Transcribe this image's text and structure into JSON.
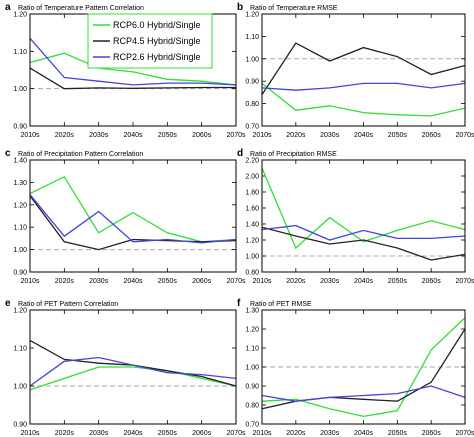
{
  "chart_data": [
    {
      "type": "line",
      "panel_letter": "a",
      "title": "Ratio of Temperature Pattern Correlation",
      "categories": [
        "2010s",
        "2020s",
        "2030s",
        "2040s",
        "2050s",
        "2060s",
        "2070s"
      ],
      "ylim": [
        0.9,
        1.2
      ],
      "yticks": [
        "0.90",
        "1.00",
        "1.10",
        "1.20"
      ],
      "reference_line": 1.0,
      "series": [
        {
          "name": "RCP6.0 Hybrid/Single",
          "color": "#33dd33",
          "values": [
            1.07,
            1.095,
            1.055,
            1.045,
            1.025,
            1.02,
            1.01
          ]
        },
        {
          "name": "RCP4.5 Hybrid/Single",
          "color": "#222222",
          "values": [
            1.055,
            1.0,
            1.002,
            1.001,
            1.002,
            1.003,
            1.003
          ]
        },
        {
          "name": "RCP2.6 Hybrid/Single",
          "color": "#4444dd",
          "values": [
            1.135,
            1.03,
            1.02,
            1.01,
            1.015,
            1.015,
            1.01
          ]
        }
      ]
    },
    {
      "type": "line",
      "panel_letter": "b",
      "title": "Ratio of Temperature RMSE",
      "categories": [
        "2010s",
        "2020s",
        "2030s",
        "2040s",
        "2050s",
        "2060s",
        "2070s"
      ],
      "ylim": [
        0.7,
        1.2
      ],
      "yticks": [
        "0.70",
        "0.80",
        "0.90",
        "1.00",
        "1.10",
        "1.20"
      ],
      "reference_line": 1.0,
      "series": [
        {
          "name": "RCP6.0 Hybrid/Single",
          "color": "#33dd33",
          "values": [
            0.89,
            0.77,
            0.79,
            0.76,
            0.75,
            0.745,
            0.78
          ]
        },
        {
          "name": "RCP4.5 Hybrid/Single",
          "color": "#222222",
          "values": [
            0.84,
            1.07,
            0.99,
            1.05,
            1.01,
            0.93,
            0.97
          ]
        },
        {
          "name": "RCP2.6 Hybrid/Single",
          "color": "#4444dd",
          "values": [
            0.87,
            0.86,
            0.87,
            0.89,
            0.89,
            0.87,
            0.89
          ]
        }
      ]
    },
    {
      "type": "line",
      "panel_letter": "c",
      "title": "Ratio of Precipitation Pattern Correlation",
      "categories": [
        "2010s",
        "2020s",
        "2030s",
        "2040s",
        "2050s",
        "2060s",
        "2070s"
      ],
      "ylim": [
        0.9,
        1.4
      ],
      "yticks": [
        "0.90",
        "1.00",
        "1.10",
        "1.20",
        "1.30",
        "1.40"
      ],
      "reference_line": 1.0,
      "series": [
        {
          "name": "RCP6.0 Hybrid/Single",
          "color": "#33dd33",
          "values": [
            1.25,
            1.325,
            1.075,
            1.165,
            1.075,
            1.035,
            1.045
          ]
        },
        {
          "name": "RCP4.5 Hybrid/Single",
          "color": "#222222",
          "values": [
            1.24,
            1.035,
            1.0,
            1.045,
            1.04,
            1.035,
            1.04
          ]
        },
        {
          "name": "RCP2.6 Hybrid/Single",
          "color": "#4444dd",
          "values": [
            1.245,
            1.06,
            1.17,
            1.035,
            1.045,
            1.03,
            1.045
          ]
        }
      ]
    },
    {
      "type": "line",
      "panel_letter": "d",
      "title": "Ratio of Precipitation RMSE",
      "categories": [
        "2010s",
        "2020s",
        "2030s",
        "2040s",
        "2050s",
        "2060s",
        "2070s"
      ],
      "ylim": [
        0.8,
        2.2
      ],
      "yticks": [
        "0.80",
        "1.00",
        "1.20",
        "1.40",
        "1.60",
        "1.80",
        "2.00",
        "2.20"
      ],
      "reference_line": 1.0,
      "series": [
        {
          "name": "RCP6.0 Hybrid/Single",
          "color": "#33dd33",
          "values": [
            2.1,
            1.1,
            1.48,
            1.18,
            1.32,
            1.44,
            1.33
          ]
        },
        {
          "name": "RCP4.5 Hybrid/Single",
          "color": "#222222",
          "values": [
            1.36,
            1.25,
            1.15,
            1.2,
            1.1,
            0.95,
            1.02
          ]
        },
        {
          "name": "RCP2.6 Hybrid/Single",
          "color": "#4444dd",
          "values": [
            1.33,
            1.38,
            1.2,
            1.32,
            1.22,
            1.22,
            1.25
          ]
        }
      ]
    },
    {
      "type": "line",
      "panel_letter": "e",
      "title": "Ratio of PET Pattern Correlation",
      "categories": [
        "2010s",
        "2020s",
        "2030s",
        "2040s",
        "2050s",
        "2060s",
        "2070s"
      ],
      "ylim": [
        0.9,
        1.2
      ],
      "yticks": [
        "0.90",
        "1.00",
        "1.10",
        "1.20"
      ],
      "reference_line": 1.0,
      "series": [
        {
          "name": "RCP6.0 Hybrid/Single",
          "color": "#33dd33",
          "values": [
            0.99,
            1.02,
            1.05,
            1.05,
            1.04,
            1.02,
            1.0
          ]
        },
        {
          "name": "RCP4.5 Hybrid/Single",
          "color": "#222222",
          "values": [
            1.12,
            1.07,
            1.06,
            1.055,
            1.04,
            1.025,
            1.0
          ]
        },
        {
          "name": "RCP2.6 Hybrid/Single",
          "color": "#4444dd",
          "values": [
            1.0,
            1.065,
            1.075,
            1.055,
            1.035,
            1.03,
            1.02
          ]
        }
      ]
    },
    {
      "type": "line",
      "panel_letter": "f",
      "title": "Ratio of PET RMSE",
      "categories": [
        "2010s",
        "2020s",
        "2030s",
        "2040s",
        "2050s",
        "2060s",
        "2070s"
      ],
      "ylim": [
        0.7,
        1.3
      ],
      "yticks": [
        "0.70",
        "0.80",
        "0.90",
        "1.00",
        "1.10",
        "1.20",
        "1.30"
      ],
      "reference_line": 1.0,
      "series": [
        {
          "name": "RCP6.0 Hybrid/Single",
          "color": "#33dd33",
          "values": [
            0.82,
            0.83,
            0.78,
            0.74,
            0.77,
            1.09,
            1.26
          ]
        },
        {
          "name": "RCP4.5 Hybrid/Single",
          "color": "#222222",
          "values": [
            0.78,
            0.82,
            0.84,
            0.83,
            0.82,
            0.92,
            1.2
          ]
        },
        {
          "name": "RCP2.6 Hybrid/Single",
          "color": "#4444dd",
          "values": [
            0.85,
            0.82,
            0.84,
            0.85,
            0.86,
            0.9,
            0.84
          ]
        }
      ]
    }
  ],
  "legend": {
    "entries": [
      {
        "label": "RCP6.0 Hybrid/Single",
        "color": "#33dd33"
      },
      {
        "label": "RCP4.5 Hybrid/Single",
        "color": "#222222"
      },
      {
        "label": "RCP2.6 Hybrid/Single",
        "color": "#4444dd"
      }
    ]
  },
  "colors": {
    "reference_line": "#aaaaaa",
    "axis": "#000000",
    "legend_border": "#33dd33"
  }
}
